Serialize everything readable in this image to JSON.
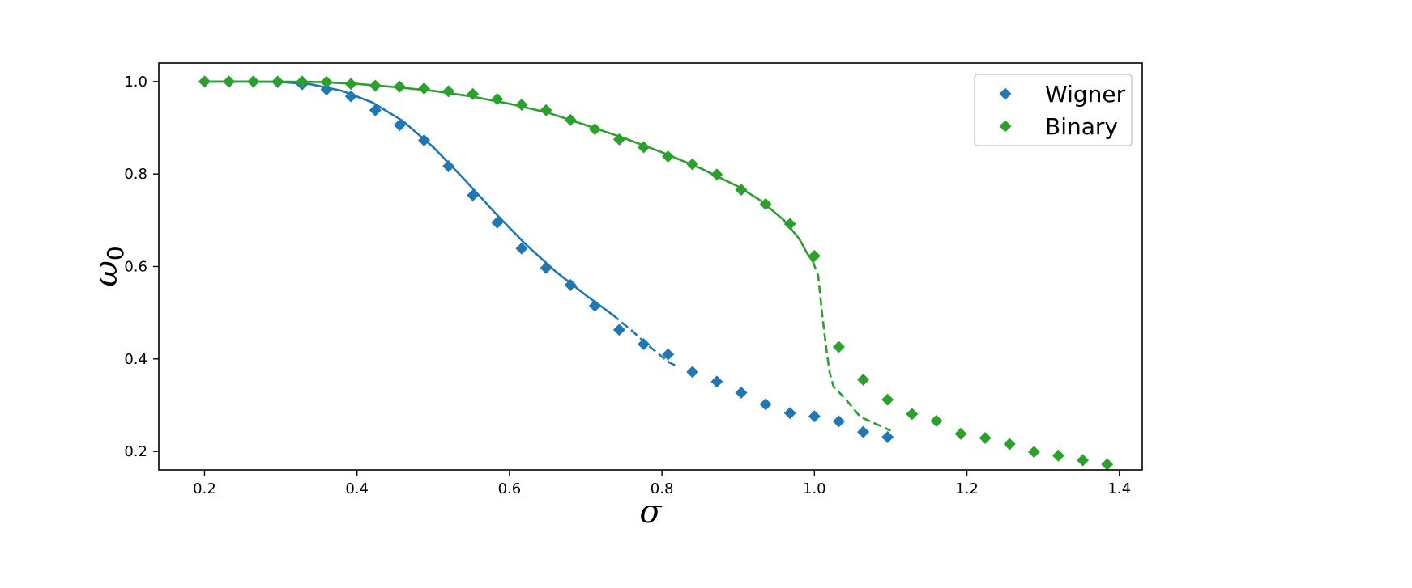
{
  "chart_data": {
    "type": "scatter",
    "xlabel": "σ",
    "ylabel": "ω",
    "ylabel_subscript": "0",
    "xlim": [
      0.14,
      1.43
    ],
    "ylim": [
      0.16,
      1.04
    ],
    "xticks": [
      0.2,
      0.4,
      0.6,
      0.8,
      1.0,
      1.2,
      1.4
    ],
    "yticks": [
      0.2,
      0.4,
      0.6,
      0.8,
      1.0
    ],
    "xtick_labels": [
      "0.2",
      "0.4",
      "0.6",
      "0.8",
      "1.0",
      "1.2",
      "1.4"
    ],
    "ytick_labels": [
      "0.2",
      "0.4",
      "0.6",
      "0.8",
      "1.0"
    ],
    "grid": false,
    "legend_position": "top-right",
    "series": [
      {
        "name": "Wigner",
        "color": "#1f77b4",
        "marker": "diamond",
        "points": [
          [
            0.2,
            1.0
          ],
          [
            0.232,
            1.0
          ],
          [
            0.264,
            1.0
          ],
          [
            0.296,
            0.999
          ],
          [
            0.328,
            0.994
          ],
          [
            0.36,
            0.983
          ],
          [
            0.392,
            0.968
          ],
          [
            0.424,
            0.938
          ],
          [
            0.456,
            0.906
          ],
          [
            0.488,
            0.873
          ],
          [
            0.52,
            0.817
          ],
          [
            0.552,
            0.754
          ],
          [
            0.584,
            0.695
          ],
          [
            0.616,
            0.639
          ],
          [
            0.648,
            0.597
          ],
          [
            0.68,
            0.56
          ],
          [
            0.712,
            0.515
          ],
          [
            0.744,
            0.463
          ],
          [
            0.776,
            0.432
          ],
          [
            0.808,
            0.41
          ],
          [
            0.84,
            0.372
          ],
          [
            0.872,
            0.351
          ],
          [
            0.904,
            0.327
          ],
          [
            0.936,
            0.302
          ],
          [
            0.968,
            0.283
          ],
          [
            1.0,
            0.276
          ],
          [
            1.032,
            0.265
          ],
          [
            1.064,
            0.242
          ],
          [
            1.096,
            0.231
          ]
        ],
        "fit_solid": [
          [
            0.2,
            1.0
          ],
          [
            0.26,
            1.0
          ],
          [
            0.3,
            0.999
          ],
          [
            0.34,
            0.994
          ],
          [
            0.38,
            0.98
          ],
          [
            0.42,
            0.955
          ],
          [
            0.46,
            0.915
          ],
          [
            0.5,
            0.858
          ],
          [
            0.54,
            0.79
          ],
          [
            0.58,
            0.718
          ],
          [
            0.62,
            0.65
          ],
          [
            0.66,
            0.59
          ],
          [
            0.7,
            0.538
          ],
          [
            0.735,
            0.496
          ]
        ],
        "fit_dashed": [
          [
            0.735,
            0.496
          ],
          [
            0.76,
            0.462
          ],
          [
            0.78,
            0.432
          ],
          [
            0.8,
            0.405
          ],
          [
            0.81,
            0.392
          ],
          [
            0.82,
            0.384
          ]
        ]
      },
      {
        "name": "Binary",
        "color": "#2ca02c",
        "marker": "diamond",
        "points": [
          [
            0.2,
            1.0
          ],
          [
            0.232,
            1.0
          ],
          [
            0.264,
            1.0
          ],
          [
            0.296,
            1.0
          ],
          [
            0.328,
            1.0
          ],
          [
            0.36,
            0.999
          ],
          [
            0.392,
            0.995
          ],
          [
            0.424,
            0.991
          ],
          [
            0.456,
            0.989
          ],
          [
            0.488,
            0.985
          ],
          [
            0.52,
            0.979
          ],
          [
            0.552,
            0.973
          ],
          [
            0.584,
            0.962
          ],
          [
            0.616,
            0.95
          ],
          [
            0.648,
            0.938
          ],
          [
            0.68,
            0.917
          ],
          [
            0.712,
            0.897
          ],
          [
            0.744,
            0.875
          ],
          [
            0.776,
            0.858
          ],
          [
            0.808,
            0.838
          ],
          [
            0.84,
            0.821
          ],
          [
            0.872,
            0.799
          ],
          [
            0.904,
            0.766
          ],
          [
            0.936,
            0.735
          ],
          [
            0.968,
            0.692
          ],
          [
            1.0,
            0.623
          ],
          [
            1.032,
            0.426
          ],
          [
            1.064,
            0.355
          ],
          [
            1.096,
            0.312
          ],
          [
            1.128,
            0.281
          ],
          [
            1.16,
            0.266
          ],
          [
            1.192,
            0.238
          ],
          [
            1.224,
            0.229
          ],
          [
            1.256,
            0.216
          ],
          [
            1.288,
            0.199
          ],
          [
            1.32,
            0.191
          ],
          [
            1.352,
            0.181
          ],
          [
            1.384,
            0.172
          ]
        ],
        "fit_solid": [
          [
            0.2,
            1.0
          ],
          [
            0.3,
            1.0
          ],
          [
            0.35,
            0.999
          ],
          [
            0.4,
            0.995
          ],
          [
            0.45,
            0.988
          ],
          [
            0.5,
            0.98
          ],
          [
            0.55,
            0.968
          ],
          [
            0.6,
            0.952
          ],
          [
            0.65,
            0.933
          ],
          [
            0.7,
            0.906
          ],
          [
            0.75,
            0.878
          ],
          [
            0.8,
            0.847
          ],
          [
            0.85,
            0.813
          ],
          [
            0.9,
            0.773
          ],
          [
            0.93,
            0.742
          ],
          [
            0.96,
            0.7
          ],
          [
            0.98,
            0.66
          ],
          [
            0.99,
            0.63
          ],
          [
            0.998,
            0.61
          ]
        ],
        "fit_dashed": [
          [
            0.998,
            0.61
          ],
          [
            1.005,
            0.58
          ],
          [
            1.01,
            0.5
          ],
          [
            1.015,
            0.43
          ],
          [
            1.02,
            0.37
          ],
          [
            1.025,
            0.34
          ],
          [
            1.04,
            0.315
          ],
          [
            1.06,
            0.275
          ],
          [
            1.08,
            0.26
          ],
          [
            1.1,
            0.245
          ]
        ]
      }
    ]
  }
}
